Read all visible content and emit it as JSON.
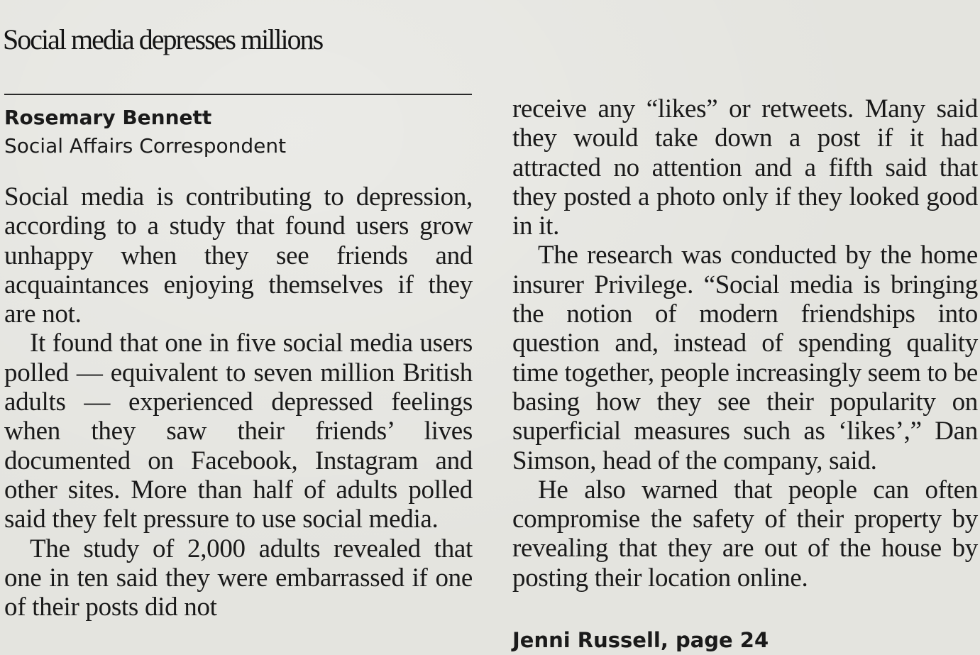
{
  "article": {
    "headline": "Social media depresses millions",
    "byline": {
      "author": "Rosemary Bennett",
      "role": "Social Affairs Correspondent"
    },
    "left_column": [
      "Social media is contributing to depression, according to a study that found users grow unhappy when they see friends and acquaintances enjoying themselves if they are not.",
      "It found that one in five social media users polled — equivalent to seven million British adults — experienced depressed feelings when they saw their friends’ lives documented on Facebook, Instagram and other sites. More than half of adults polled said they felt pressure to use social media.",
      "The study of 2,000 adults revealed that one in ten said they were embarrassed if one of their posts did not"
    ],
    "right_column": [
      "receive any “likes” or retweets. Many said they would take down a post if it had attracted no attention and a fifth said that they posted a photo only if they looked good in it.",
      "The research was conducted by the home insurer Privilege. “Social media is bringing the notion of modern friendships into question and, instead of spending quality time together, people increasingly seem to be basing how they see their popularity on superficial measures such as ‘likes’,” Dan Simson, head of the company, said.",
      "He also warned that people can often compromise the safety of their property by revealing that they are out of the house by posting their location online."
    ],
    "cross_reference": "Jenni Russell, page 24"
  }
}
